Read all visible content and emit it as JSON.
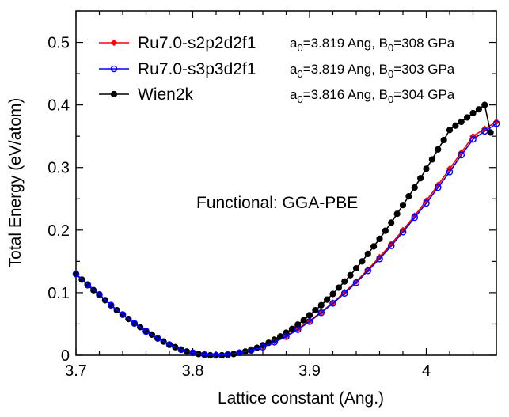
{
  "chart_data": {
    "type": "line",
    "xlabel": "Lattice constant (Ang.)",
    "ylabel": "Total Energy (eV/atom)",
    "xlim": [
      3.7,
      4.06
    ],
    "ylim": [
      0,
      0.55
    ],
    "xticks": [
      3.7,
      3.8,
      3.9,
      4.0
    ],
    "xtick_labels": [
      "3.7",
      "3.8",
      "3.9",
      "4"
    ],
    "yticks": [
      0,
      0.1,
      0.2,
      0.3,
      0.4,
      0.5
    ],
    "ytick_labels": [
      "0",
      "0.1",
      "0.2",
      "0.3",
      "0.4",
      "0.5"
    ],
    "grid": false,
    "legend_position": "top-left",
    "annotation": "Functional: GGA-PBE",
    "series": [
      {
        "name": "Ru7.0-s2p2d2f1",
        "color": "#ff0000",
        "marker": "filled-diamond",
        "params": {
          "a0": "3.819",
          "B0": "308"
        },
        "x": [
          3.7,
          3.71,
          3.72,
          3.73,
          3.74,
          3.75,
          3.76,
          3.77,
          3.78,
          3.79,
          3.8,
          3.81,
          3.82,
          3.83,
          3.84,
          3.85,
          3.86,
          3.87,
          3.88,
          3.89,
          3.9,
          3.91,
          3.92,
          3.93,
          3.94,
          3.95,
          3.96,
          3.97,
          3.98,
          3.99,
          4.0,
          4.01,
          4.02,
          4.03,
          4.04,
          4.05,
          4.06
        ],
        "y": [
          0.13,
          0.113,
          0.097,
          0.08,
          0.065,
          0.051,
          0.038,
          0.027,
          0.017,
          0.009,
          0.004,
          0.001,
          0.0,
          0.001,
          0.004,
          0.008,
          0.014,
          0.022,
          0.031,
          0.042,
          0.055,
          0.069,
          0.084,
          0.101,
          0.118,
          0.137,
          0.157,
          0.178,
          0.2,
          0.223,
          0.247,
          0.272,
          0.298,
          0.324,
          0.35,
          0.362,
          0.373
        ]
      },
      {
        "name": "Ru7.0-s3p3d2f1",
        "color": "#0000ff",
        "marker": "open-circle",
        "params": {
          "a0": "3.819",
          "B0": "303"
        },
        "x": [
          3.7,
          3.71,
          3.72,
          3.73,
          3.74,
          3.75,
          3.76,
          3.77,
          3.78,
          3.79,
          3.8,
          3.81,
          3.82,
          3.83,
          3.84,
          3.85,
          3.86,
          3.87,
          3.88,
          3.89,
          3.9,
          3.91,
          3.92,
          3.93,
          3.94,
          3.95,
          3.96,
          3.97,
          3.98,
          3.99,
          4.0,
          4.01,
          4.02,
          4.03,
          4.04,
          4.05,
          4.06
        ],
        "y": [
          0.13,
          0.113,
          0.097,
          0.08,
          0.065,
          0.051,
          0.038,
          0.027,
          0.017,
          0.009,
          0.004,
          0.001,
          0.0,
          0.001,
          0.004,
          0.008,
          0.013,
          0.021,
          0.03,
          0.041,
          0.054,
          0.068,
          0.083,
          0.099,
          0.116,
          0.135,
          0.154,
          0.175,
          0.197,
          0.22,
          0.243,
          0.268,
          0.293,
          0.32,
          0.345,
          0.358,
          0.37
        ]
      },
      {
        "name": "Wien2k",
        "color": "#000000",
        "marker": "filled-circle",
        "params": {
          "a0": "3.816",
          "B0": "304"
        },
        "x": [
          3.7,
          3.705,
          3.71,
          3.715,
          3.72,
          3.725,
          3.73,
          3.735,
          3.74,
          3.745,
          3.75,
          3.755,
          3.76,
          3.765,
          3.77,
          3.775,
          3.78,
          3.785,
          3.79,
          3.795,
          3.8,
          3.805,
          3.81,
          3.815,
          3.82,
          3.825,
          3.83,
          3.835,
          3.84,
          3.845,
          3.85,
          3.855,
          3.86,
          3.865,
          3.87,
          3.875,
          3.88,
          3.885,
          3.89,
          3.895,
          3.9,
          3.905,
          3.91,
          3.915,
          3.92,
          3.925,
          3.93,
          3.935,
          3.94,
          3.945,
          3.95,
          3.955,
          3.96,
          3.965,
          3.97,
          3.975,
          3.98,
          3.985,
          3.99,
          3.995,
          4.0,
          4.005,
          4.01,
          4.015,
          4.02,
          4.025,
          4.03,
          4.035,
          4.04,
          4.045,
          4.05,
          4.055
        ],
        "y": [
          0.13,
          0.121,
          0.112,
          0.104,
          0.096,
          0.088,
          0.08,
          0.072,
          0.065,
          0.058,
          0.051,
          0.045,
          0.039,
          0.033,
          0.027,
          0.022,
          0.017,
          0.013,
          0.009,
          0.006,
          0.004,
          0.002,
          0.001,
          0.0,
          0.0,
          0.0,
          0.001,
          0.002,
          0.004,
          0.006,
          0.009,
          0.012,
          0.016,
          0.02,
          0.025,
          0.03,
          0.036,
          0.042,
          0.049,
          0.056,
          0.064,
          0.072,
          0.08,
          0.089,
          0.098,
          0.108,
          0.118,
          0.128,
          0.139,
          0.15,
          0.162,
          0.174,
          0.186,
          0.199,
          0.212,
          0.226,
          0.24,
          0.254,
          0.268,
          0.283,
          0.298,
          0.313,
          0.329,
          0.344,
          0.36,
          0.367,
          0.373,
          0.38,
          0.387,
          0.393,
          0.4,
          0.356
        ]
      }
    ]
  }
}
